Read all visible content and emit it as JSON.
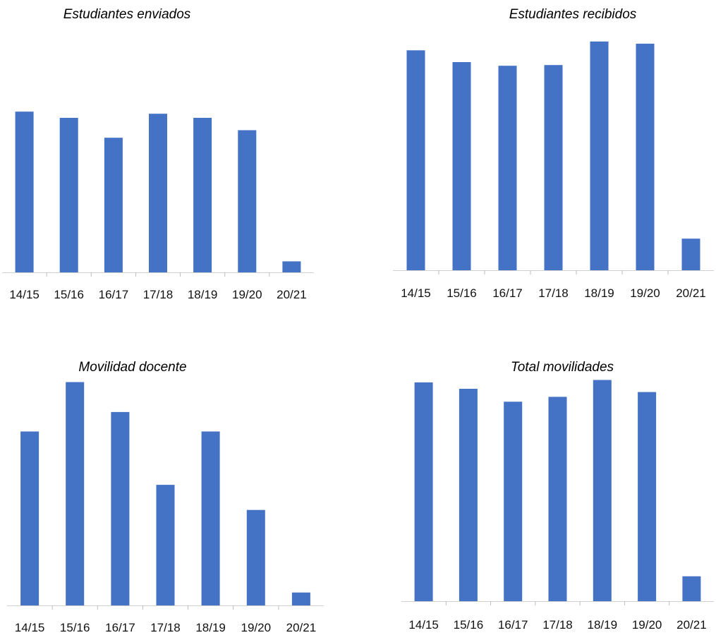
{
  "chart_data": [
    {
      "type": "bar",
      "title": "Estudiantes enviados",
      "categories": [
        "14/15",
        "15/16",
        "16/17",
        "17/18",
        "18/19",
        "19/20",
        "20/21"
      ],
      "values": [
        234,
        225,
        196,
        231,
        225,
        207,
        16
      ],
      "ylim": [
        0,
        300
      ],
      "color": "#4472c4",
      "grid": false,
      "legend": false
    },
    {
      "type": "bar",
      "title": "Estudiantes recibidos",
      "categories": [
        "14/15",
        "15/16",
        "16/17",
        "17/18",
        "18/19",
        "19/20",
        "20/21"
      ],
      "values": [
        299,
        283,
        278,
        279,
        311,
        308,
        43
      ],
      "ylim": [
        0,
        330
      ],
      "color": "#4472c4",
      "grid": false,
      "legend": false
    },
    {
      "type": "bar",
      "title": "Movilidad docente",
      "categories": [
        "14/15",
        "15/16",
        "16/17",
        "17/18",
        "18/19",
        "19/20",
        "20/21"
      ],
      "values": [
        215,
        276,
        239,
        149,
        215,
        118,
        16
      ],
      "ylim": [
        0,
        300
      ],
      "color": "#4472c4",
      "grid": false,
      "legend": false
    },
    {
      "type": "bar",
      "title": "Total movilidades",
      "categories": [
        "14/15",
        "15/16",
        "16/17",
        "17/18",
        "18/19",
        "19/20",
        "20/21"
      ],
      "values": [
        272,
        264,
        248,
        254,
        275,
        260,
        31
      ],
      "ylim": [
        0,
        300
      ],
      "color": "#4472c4",
      "grid": false,
      "legend": false
    }
  ]
}
